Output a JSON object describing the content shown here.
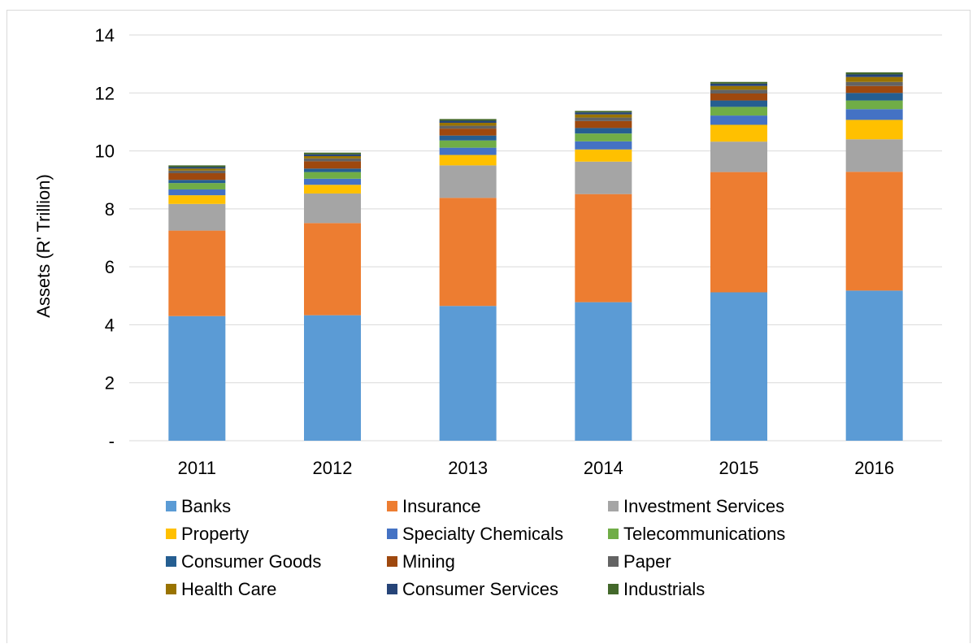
{
  "chart_data": {
    "type": "bar",
    "stacked": true,
    "title": "",
    "xlabel": "",
    "ylabel": "Assets (R' Trillion)",
    "ylim": [
      0,
      14
    ],
    "yticks": [
      0,
      2,
      4,
      6,
      8,
      10,
      12,
      14
    ],
    "ytick_labels": [
      "-",
      "2",
      "4",
      "6",
      "8",
      "10",
      "12",
      "14"
    ],
    "grid": true,
    "legend_position": "bottom",
    "categories": [
      "2011",
      "2012",
      "2013",
      "2014",
      "2015",
      "2016"
    ],
    "series": [
      {
        "name": "Banks",
        "color": "#5b9bd5",
        "values": [
          4.3,
          4.33,
          4.65,
          4.78,
          5.12,
          5.18
        ]
      },
      {
        "name": "Insurance",
        "color": "#ed7d31",
        "values": [
          2.95,
          3.18,
          3.73,
          3.73,
          4.15,
          4.1
        ]
      },
      {
        "name": "Investment Services",
        "color": "#a5a5a5",
        "values": [
          0.92,
          1.02,
          1.12,
          1.12,
          1.05,
          1.12
        ]
      },
      {
        "name": "Property",
        "color": "#ffc000",
        "values": [
          0.3,
          0.3,
          0.36,
          0.42,
          0.58,
          0.67
        ]
      },
      {
        "name": "Specialty Chemicals",
        "color": "#4472c4",
        "values": [
          0.2,
          0.21,
          0.25,
          0.28,
          0.32,
          0.37
        ]
      },
      {
        "name": "Telecommunications",
        "color": "#70ad47",
        "values": [
          0.22,
          0.23,
          0.25,
          0.27,
          0.3,
          0.3
        ]
      },
      {
        "name": "Consumer Goods",
        "color": "#255e91",
        "values": [
          0.11,
          0.12,
          0.17,
          0.19,
          0.22,
          0.26
        ]
      },
      {
        "name": "Mining",
        "color": "#9e480e",
        "values": [
          0.23,
          0.25,
          0.24,
          0.24,
          0.24,
          0.24
        ]
      },
      {
        "name": "Paper",
        "color": "#636363",
        "values": [
          0.09,
          0.1,
          0.1,
          0.12,
          0.13,
          0.14
        ]
      },
      {
        "name": "Health Care",
        "color": "#997300",
        "values": [
          0.07,
          0.08,
          0.1,
          0.11,
          0.13,
          0.17
        ]
      },
      {
        "name": "Consumer Services",
        "color": "#264478",
        "values": [
          0.05,
          0.06,
          0.07,
          0.07,
          0.08,
          0.09
        ]
      },
      {
        "name": "Industrials",
        "color": "#43682b",
        "values": [
          0.06,
          0.06,
          0.06,
          0.05,
          0.06,
          0.07
        ]
      }
    ]
  }
}
